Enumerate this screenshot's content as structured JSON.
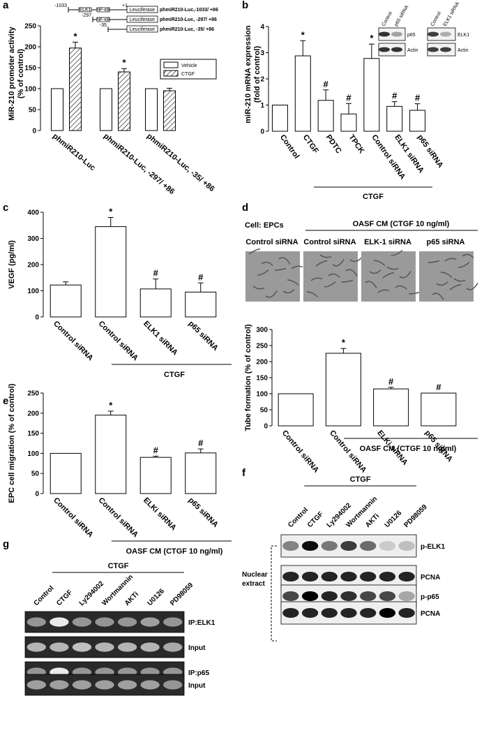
{
  "chart_data": [
    {
      "id": "a",
      "panel_label": "a",
      "type": "bar",
      "ylabel": "MiR-210 promoter activity\n(% of control)",
      "ylim": [
        0,
        250
      ],
      "yticks": [
        0,
        50,
        100,
        150,
        200,
        250
      ],
      "categories": [
        "phmiR210-Luc",
        "phmiR210-Luc, -297/ +86",
        "phmiR210-Luc, -35/ +86"
      ],
      "series": [
        {
          "name": "Vehicle",
          "pattern": "open",
          "values": [
            100,
            100,
            100
          ],
          "errors": [
            0,
            0,
            0
          ]
        },
        {
          "name": "CTGF",
          "pattern": "hatched",
          "values": [
            197,
            140,
            95
          ],
          "errors": [
            14,
            8,
            6
          ]
        }
      ],
      "markers": [
        {
          "series": "CTGF",
          "index": 0,
          "symbol": "*"
        },
        {
          "series": "CTGF",
          "index": 1,
          "symbol": "*"
        }
      ],
      "constructs": [
        {
          "start": "-1033",
          "end": "+1",
          "elements": [
            "ELK1",
            "NF-κB"
          ],
          "reporter": "Leuciferase",
          "name": "phmiR210-Luc,-1033/ +86"
        },
        {
          "start": "-297",
          "elements": [
            "NF-κB"
          ],
          "reporter": "Leuciferase",
          "name": "phmiR210-Luc, -297/ +86"
        },
        {
          "start": "-35",
          "elements": [],
          "reporter": "Leuciferase",
          "name": "phmiR210-Luc, -35/ +86"
        }
      ]
    },
    {
      "id": "b",
      "panel_label": "b",
      "type": "bar",
      "ylabel": "miR-210 mRNA expression\n(fold of control)",
      "ylim": [
        0,
        4
      ],
      "yticks": [
        0,
        1,
        2,
        3,
        4
      ],
      "categories": [
        "Control",
        "CTGF",
        "PDTC",
        "TPCK",
        "Control siRNA",
        "ELK1 siRNA",
        "p65 siRNA"
      ],
      "values": [
        1.0,
        2.88,
        1.18,
        0.66,
        2.78,
        0.95,
        0.8
      ],
      "errors": [
        0,
        0.58,
        0.4,
        0.4,
        0.55,
        0.18,
        0.25
      ],
      "markers": [
        "",
        "*",
        "#",
        "#",
        "*",
        "#",
        "#"
      ],
      "group_label": "CTGF",
      "blots": [
        {
          "columns": [
            "Control",
            "p65 siRNA"
          ],
          "rows": [
            "p65",
            "Actin"
          ]
        },
        {
          "columns": [
            "Control",
            "ELK1 siRNA"
          ],
          "rows": [
            "ELK1",
            "Actin"
          ]
        }
      ]
    },
    {
      "id": "c",
      "panel_label": "c",
      "type": "bar",
      "ylabel": "VEGF (pg/ml)",
      "ylim": [
        0,
        400
      ],
      "yticks": [
        0,
        100,
        200,
        300,
        400
      ],
      "categories": [
        "Control siRNA",
        "Control siRNA",
        "ELK1 siRNA",
        "p65 siRNA"
      ],
      "values": [
        122,
        345,
        107,
        95
      ],
      "errors": [
        12,
        35,
        38,
        35
      ],
      "markers": [
        "",
        "*",
        "#",
        "#"
      ],
      "group_label": "CTGF"
    },
    {
      "id": "d",
      "panel_label": "d",
      "type": "bar",
      "ylabel": "Tube formation (% of control)",
      "ylim": [
        0,
        300
      ],
      "yticks": [
        0,
        50,
        100,
        150,
        200,
        250,
        300
      ],
      "categories": [
        "Control siRNA",
        "Control siRNA",
        "ELKi siRNA",
        "p65 siRNA"
      ],
      "values": [
        100,
        226,
        115,
        102
      ],
      "errors": [
        0,
        15,
        5,
        0
      ],
      "markers": [
        "",
        "*",
        "#",
        "#"
      ],
      "group_label": "OASF CM (CTGF 10 ng/ml)",
      "image_header": {
        "left": "Cell: EPCs",
        "right": "OASF CM (CTGF 10 ng/ml)"
      },
      "image_labels": [
        "Control siRNA",
        "Control siRNA",
        "ELK-1 siRNA",
        "p65 siRNA"
      ]
    },
    {
      "id": "e",
      "panel_label": "e",
      "type": "bar",
      "ylabel": "EPC cell migration (% of control)",
      "ylim": [
        0,
        250
      ],
      "yticks": [
        0,
        50,
        100,
        150,
        200,
        250
      ],
      "categories": [
        "Control siRNA",
        "Control siRNA",
        "ELKi siRNA",
        "p65 siRNA"
      ],
      "values": [
        100,
        195,
        90,
        101
      ],
      "errors": [
        0,
        10,
        3,
        10
      ],
      "markers": [
        "",
        "*",
        "#",
        "#"
      ],
      "group_label": "OASF CM (CTGF 10 ng/ml)"
    },
    {
      "id": "f",
      "panel_label": "f",
      "type": "blot",
      "group_label": "CTGF",
      "lanes": [
        "Control",
        "CTGF",
        "Ly294002",
        "Wortmannin",
        "AKTi",
        "U0126",
        "PD98059"
      ],
      "rows": [
        "p-ELK1",
        "PCNA",
        "p-p65",
        "PCNA"
      ],
      "side_label": "Nuclear\nextract",
      "band_intensity": [
        [
          0.45,
          0.95,
          0.5,
          0.75,
          0.55,
          0.15,
          0.2
        ],
        [
          0.85,
          0.85,
          0.85,
          0.85,
          0.85,
          0.85,
          0.85
        ],
        [
          0.7,
          1.0,
          0.85,
          0.8,
          0.7,
          0.7,
          0.3
        ],
        [
          0.85,
          0.85,
          0.85,
          0.85,
          0.85,
          1.0,
          0.85
        ]
      ]
    },
    {
      "id": "g",
      "panel_label": "g",
      "type": "blot",
      "group_label": "CTGF",
      "lanes": [
        "Control",
        "CTGF",
        "Ly294002",
        "Wortmannin",
        "AKTi",
        "U0126",
        "PD98059"
      ],
      "rows": [
        "IP:ELK1",
        "Input",
        "IP:p65",
        "Input"
      ],
      "band_intensity": [
        [
          0.5,
          0.9,
          0.5,
          0.5,
          0.5,
          0.55,
          0.5
        ],
        [
          0.65,
          0.65,
          0.7,
          0.65,
          0.65,
          0.65,
          0.6
        ],
        [
          0.5,
          0.9,
          0.5,
          0.5,
          0.5,
          0.5,
          0.5
        ],
        [
          0.55,
          0.55,
          0.55,
          0.55,
          0.55,
          0.55,
          0.5
        ]
      ]
    }
  ]
}
